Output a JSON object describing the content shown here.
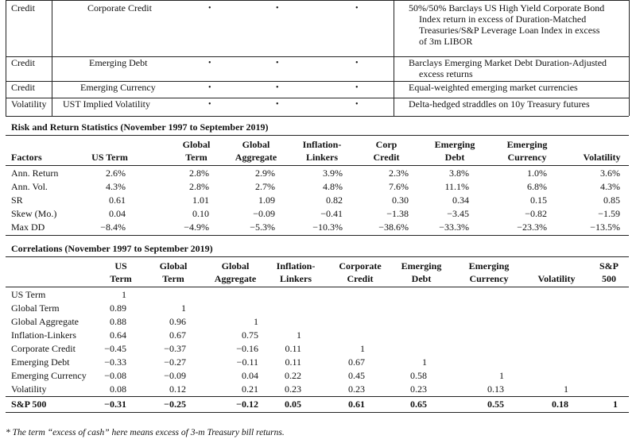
{
  "top_table": {
    "rows": [
      {
        "category": "Credit",
        "name": "Corporate Credit",
        "bullets": [
          "•",
          "•",
          "•"
        ],
        "desc_lines": [
          "50%/50% Barclays US High Yield Corporate Bond",
          "Index return in excess of Duration-Matched",
          "Treasuries/S&P Leverage Loan Index in excess",
          "of 3m LIBOR"
        ]
      },
      {
        "category": "Credit",
        "name": "Emerging Debt",
        "bullets": [
          "•",
          "•",
          "•"
        ],
        "desc_lines": [
          "Barclays Emerging Market Debt Duration-Adjusted",
          "excess returns"
        ]
      },
      {
        "category": "Credit",
        "name": "Emerging Currency",
        "bullets": [
          "•",
          "•",
          "•"
        ],
        "desc_lines": [
          "Equal-weighted emerging market currencies"
        ]
      },
      {
        "category": "Volatility",
        "name": "UST Implied Volatility",
        "bullets": [
          "•",
          "•",
          "•"
        ],
        "desc_lines": [
          "Delta-hedged straddles on 10y Treasury futures"
        ]
      }
    ]
  },
  "risk_table": {
    "title": "Risk and Return Statistics (November 1997 to September 2019)",
    "columns": [
      {
        "l1": "",
        "l2": "Factors"
      },
      {
        "l1": "",
        "l2": "US Term"
      },
      {
        "l1": "Global",
        "l2": "Term"
      },
      {
        "l1": "Global",
        "l2": "Aggregate"
      },
      {
        "l1": "Inflation-",
        "l2": "Linkers"
      },
      {
        "l1": "Corp",
        "l2": "Credit"
      },
      {
        "l1": "Emerging",
        "l2": "Debt"
      },
      {
        "l1": "Emerging",
        "l2": "Currency"
      },
      {
        "l1": "",
        "l2": "Volatility"
      }
    ],
    "rows": [
      {
        "label": "Ann. Return",
        "values": [
          "2.6%",
          "2.8%",
          "2.9%",
          "3.9%",
          "2.3%",
          "3.8%",
          "1.0%",
          "3.6%"
        ]
      },
      {
        "label": "Ann. Vol.",
        "values": [
          "4.3%",
          "2.8%",
          "2.7%",
          "4.8%",
          "7.6%",
          "11.1%",
          "6.8%",
          "4.3%"
        ]
      },
      {
        "label": "SR",
        "values": [
          "0.61",
          "1.01",
          "1.09",
          "0.82",
          "0.30",
          "0.34",
          "0.15",
          "0.85"
        ]
      },
      {
        "label": "Skew (Mo.)",
        "values": [
          "0.04",
          "0.10",
          "−0.09",
          "−0.41",
          "−1.38",
          "−3.45",
          "−0.82",
          "−1.59"
        ]
      },
      {
        "label": "Max DD",
        "values": [
          "−8.4%",
          "−4.9%",
          "−5.3%",
          "−10.3%",
          "−38.6%",
          "−33.3%",
          "−23.3%",
          "−13.5%"
        ]
      }
    ]
  },
  "corr_table": {
    "title": "Correlations (November 1997 to September 2019)",
    "columns": [
      {
        "l1": "US",
        "l2": "Term"
      },
      {
        "l1": "Global",
        "l2": "Term"
      },
      {
        "l1": "Global",
        "l2": "Aggregate"
      },
      {
        "l1": "Inflation-",
        "l2": "Linkers"
      },
      {
        "l1": "Corporate",
        "l2": "Credit"
      },
      {
        "l1": "Emerging",
        "l2": "Debt"
      },
      {
        "l1": "Emerging",
        "l2": "Currency"
      },
      {
        "l1": "",
        "l2": "Volatility"
      },
      {
        "l1": "S&P",
        "l2": "500"
      }
    ],
    "rows": [
      {
        "label": "US Term",
        "values": [
          "1",
          "",
          "",
          "",
          "",
          "",
          "",
          "",
          ""
        ]
      },
      {
        "label": "Global Term",
        "values": [
          "0.89",
          "1",
          "",
          "",
          "",
          "",
          "",
          "",
          ""
        ]
      },
      {
        "label": "Global Aggregate",
        "values": [
          "0.88",
          "0.96",
          "1",
          "",
          "",
          "",
          "",
          "",
          ""
        ]
      },
      {
        "label": "Inflation-Linkers",
        "values": [
          "0.64",
          "0.67",
          "0.75",
          "1",
          "",
          "",
          "",
          "",
          ""
        ]
      },
      {
        "label": "Corporate Credit",
        "values": [
          "−0.45",
          "−0.37",
          "−0.16",
          "0.11",
          "1",
          "",
          "",
          "",
          ""
        ]
      },
      {
        "label": "Emerging Debt",
        "values": [
          "−0.33",
          "−0.27",
          "−0.11",
          "0.11",
          "0.67",
          "1",
          "",
          "",
          ""
        ]
      },
      {
        "label": "Emerging Currency",
        "values": [
          "−0.08",
          "−0.09",
          "0.04",
          "0.22",
          "0.45",
          "0.58",
          "1",
          "",
          ""
        ]
      },
      {
        "label": "Volatility",
        "values": [
          "0.08",
          "0.12",
          "0.21",
          "0.23",
          "0.23",
          "0.23",
          "0.13",
          "1",
          ""
        ]
      },
      {
        "label": "S&P 500",
        "values": [
          "−0.31",
          "−0.25",
          "−0.12",
          "0.05",
          "0.61",
          "0.65",
          "0.55",
          "0.18",
          "1"
        ],
        "bold": true
      }
    ]
  },
  "footnote": "* The term “excess of cash” here means excess of 3-m Treasury bill returns."
}
